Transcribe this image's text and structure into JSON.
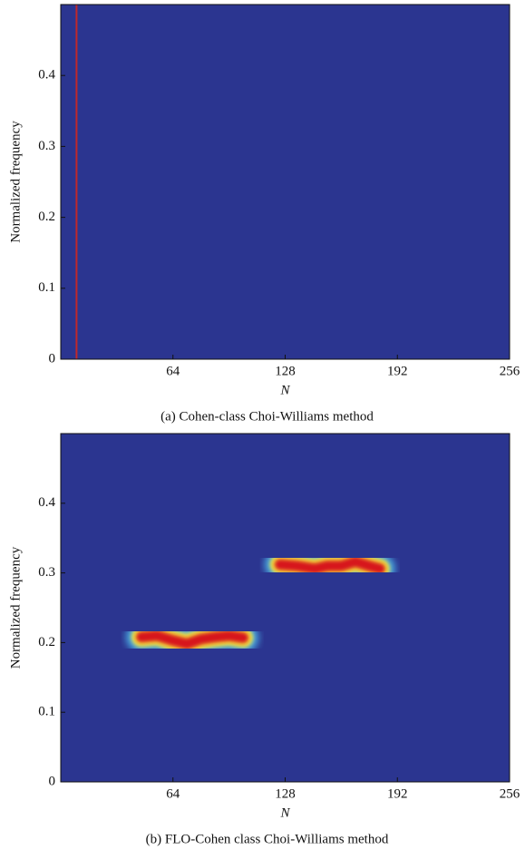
{
  "chart_data": [
    {
      "type": "heatmap",
      "caption": "(a) Cohen-class Choi-Williams method",
      "xlabel": "N",
      "ylabel": "Normalized frequency",
      "xlim": [
        0,
        256
      ],
      "ylim": [
        0,
        0.5
      ],
      "xticks": [
        64,
        128,
        192,
        256
      ],
      "yticks": [
        0,
        0.1,
        0.2,
        0.3,
        0.4
      ],
      "background": "#2b3590",
      "series": [
        {
          "color": "#c0282a",
          "x": [
            9,
            9
          ],
          "values": [
            0,
            0.5
          ]
        }
      ]
    },
    {
      "type": "heatmap",
      "caption": "(b) FLO-Cohen class Choi-Williams method",
      "xlabel": "N",
      "ylabel": "Normalized frequency",
      "xlim": [
        0,
        256
      ],
      "ylim": [
        0,
        0.5
      ],
      "xticks": [
        64,
        128,
        192,
        256
      ],
      "yticks": [
        0,
        0.1,
        0.2,
        0.3,
        0.4
      ],
      "background": "#2b3590",
      "series": [
        {
          "color": "#d7191c",
          "x": [
            46,
            55,
            64,
            72,
            80,
            88,
            96,
            104
          ],
          "values": [
            0.208,
            0.21,
            0.203,
            0.198,
            0.205,
            0.208,
            0.21,
            0.207
          ]
        },
        {
          "color": "#d7191c",
          "x": [
            125,
            135,
            145,
            152,
            160,
            168,
            176,
            182
          ],
          "values": [
            0.312,
            0.31,
            0.306,
            0.31,
            0.31,
            0.316,
            0.31,
            0.306
          ]
        }
      ]
    }
  ]
}
